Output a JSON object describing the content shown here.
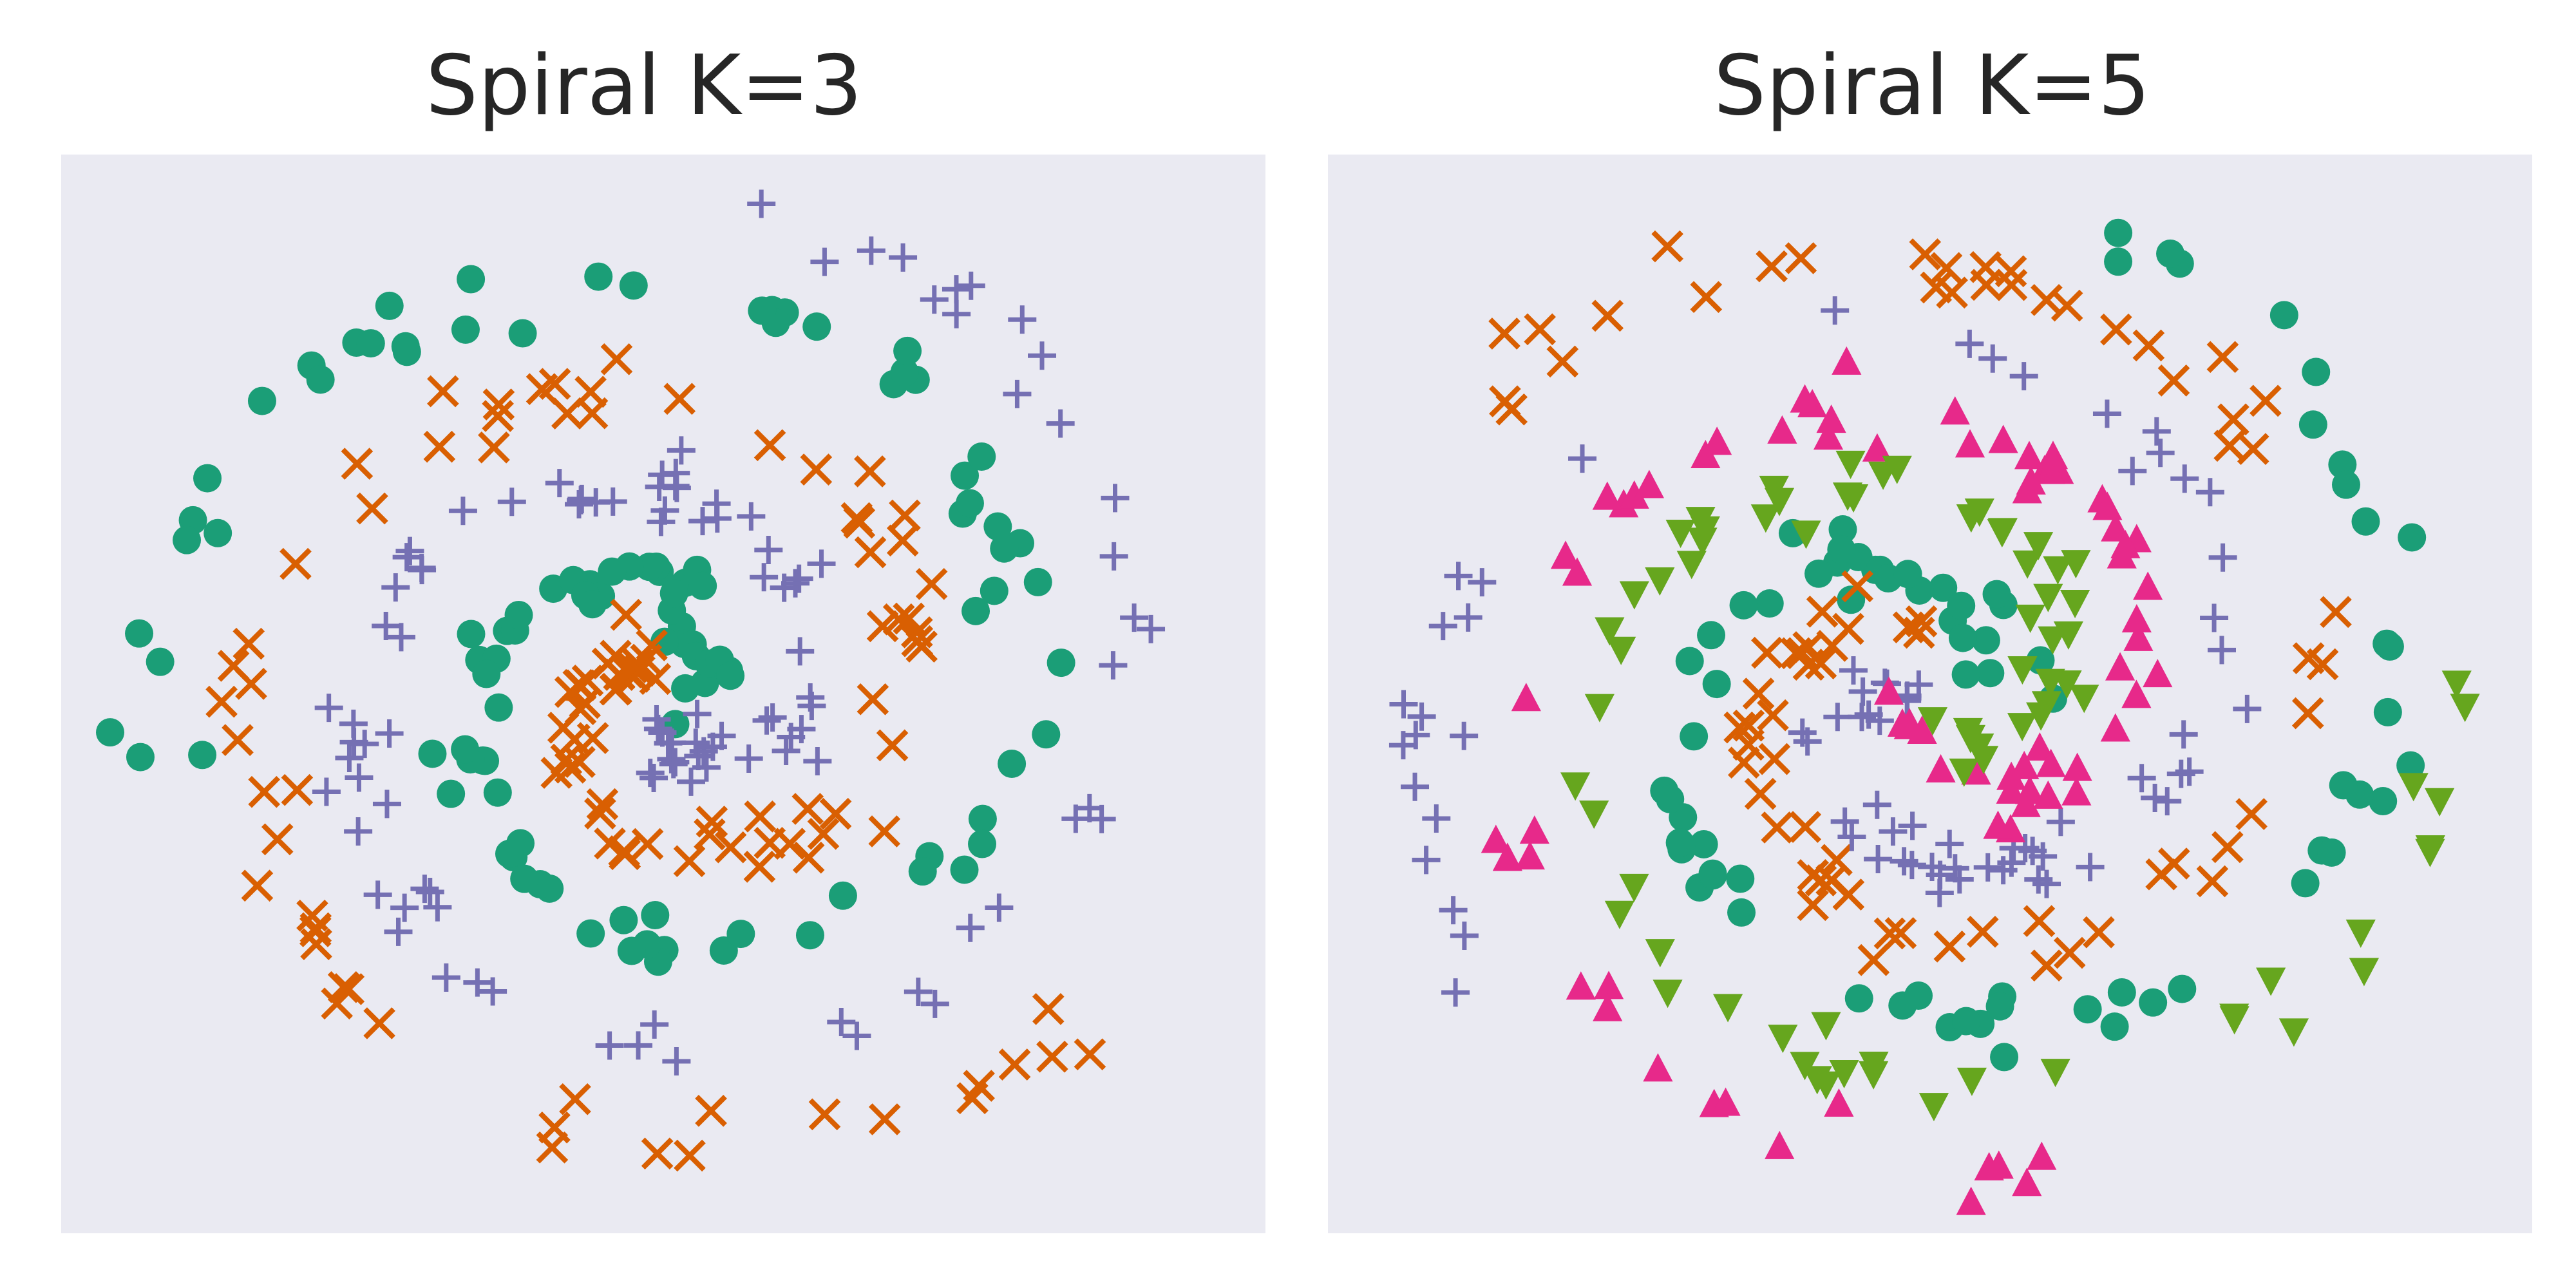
{
  "chart_data": [
    {
      "type": "scatter",
      "title": "Spiral K=3",
      "grid": false,
      "xlim": [
        -1.1,
        1.1
      ],
      "ylim": [
        -1.1,
        1.1
      ],
      "spiral": {
        "classes": 3,
        "turns": 1.55,
        "noise": 0.035,
        "points_per_class": 110,
        "seed": 7
      },
      "series": [
        {
          "marker": "circle",
          "color": "#1b9e77"
        },
        {
          "marker": "x",
          "color": "#d95f02"
        },
        {
          "marker": "plus",
          "color": "#7570b3"
        }
      ]
    },
    {
      "type": "scatter",
      "title": "Spiral K=5",
      "grid": false,
      "xlim": [
        -1.1,
        1.1
      ],
      "ylim": [
        -1.1,
        1.1
      ],
      "spiral": {
        "classes": 5,
        "turns": 1.2,
        "noise": 0.035,
        "points_per_class": 75,
        "seed": 11
      },
      "series": [
        {
          "marker": "circle",
          "color": "#1b9e77"
        },
        {
          "marker": "x",
          "color": "#d95f02"
        },
        {
          "marker": "plus",
          "color": "#7570b3"
        },
        {
          "marker": "triangle-up",
          "color": "#e7298a"
        },
        {
          "marker": "triangle-down",
          "color": "#66a61e"
        }
      ]
    }
  ]
}
